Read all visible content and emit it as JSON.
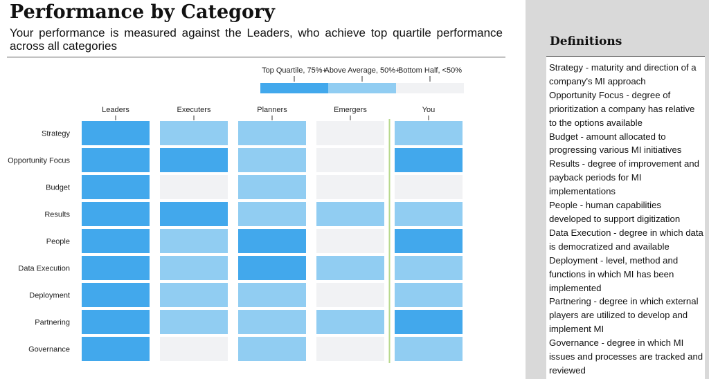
{
  "header": {
    "title": "Performance by Category",
    "subtitle": "Your performance is measured against the Leaders, who achieve top quartile performance across all categories"
  },
  "chart_data": {
    "type": "heatmap",
    "title": "Performance by Category",
    "columns": [
      "Leaders",
      "Executers",
      "Planners",
      "Emergers",
      "You"
    ],
    "rows": [
      "Strategy",
      "Opportunity Focus",
      "Budget",
      "Results",
      "People",
      "Data Execution",
      "Deployment",
      "Partnering",
      "Governance"
    ],
    "levels": [
      {
        "label": "Top Quartile, 75%+",
        "color": "#42a8ec"
      },
      {
        "label": "Above Average, 50%+",
        "color": "#91cdf2"
      },
      {
        "label": "Bottom Half, <50%",
        "color": "#f1f2f4"
      }
    ],
    "values": [
      [
        0,
        1,
        1,
        2,
        1
      ],
      [
        0,
        0,
        1,
        2,
        0
      ],
      [
        0,
        2,
        1,
        2,
        2
      ],
      [
        0,
        0,
        1,
        1,
        1
      ],
      [
        0,
        1,
        0,
        2,
        0
      ],
      [
        0,
        1,
        0,
        1,
        1
      ],
      [
        0,
        1,
        1,
        2,
        1
      ],
      [
        0,
        1,
        1,
        1,
        0
      ],
      [
        0,
        2,
        1,
        2,
        1
      ]
    ],
    "divider_color": "#b7d88c"
  },
  "definitions": {
    "title": "Definitions",
    "items": [
      "Strategy - maturity and direction of a company's MI approach",
      "Opportunity Focus - degree of prioritization a company has relative to the options available",
      "Budget - amount allocated to progressing various MI initiatives",
      "Results - degree of improvement and payback periods for MI implementations",
      "People - human capabilities developed to support digitization",
      "Data Execution - degree in which data is democratized and available",
      "Deployment - level, method and functions in which MI has been implemented",
      "Partnering - degree in which external players are utilized to develop and implement MI",
      "Governance - degree in which MI issues and processes are tracked and reviewed"
    ]
  }
}
